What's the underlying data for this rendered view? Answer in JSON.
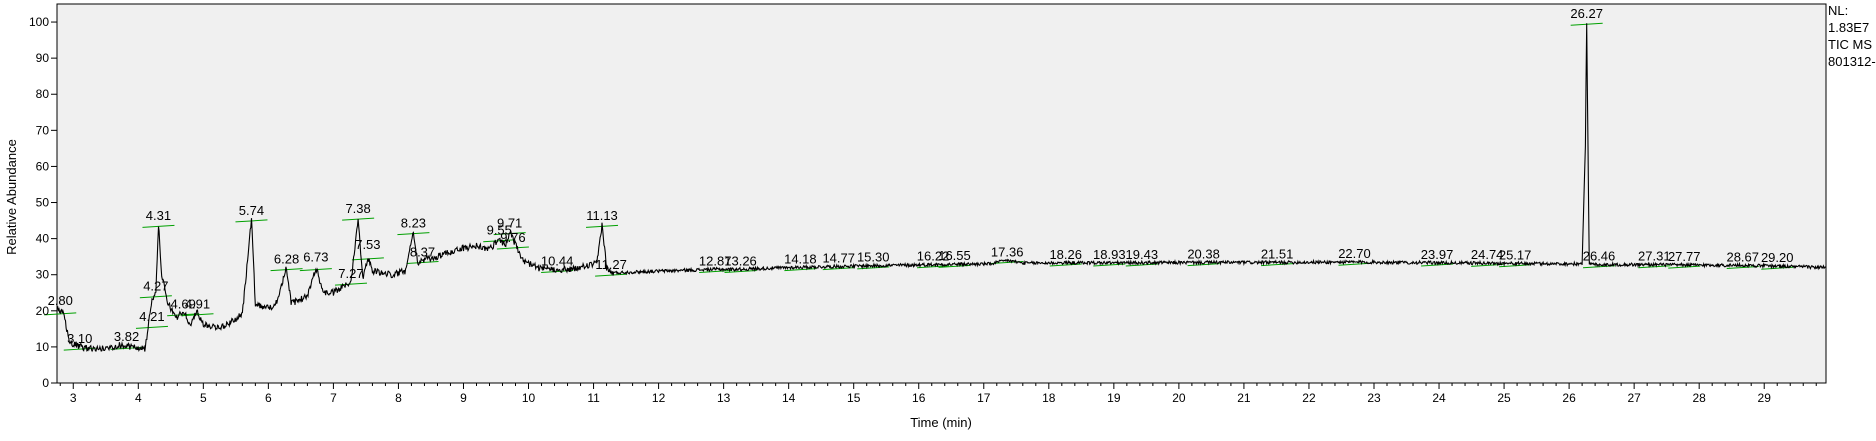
{
  "info": {
    "nl_label": "NL:",
    "nl_value": "1.83E7",
    "trace": "TIC  MS",
    "file": "801312-"
  },
  "chart_data": {
    "type": "line",
    "title": "",
    "xlabel": "Time (min)",
    "ylabel": "Relative Abundance",
    "xlim": [
      2.75,
      29.95
    ],
    "ylim": [
      0,
      105
    ],
    "grid": false,
    "legend": "none",
    "x_ticks": [
      3,
      4,
      5,
      6,
      7,
      8,
      9,
      10,
      11,
      12,
      13,
      14,
      15,
      16,
      17,
      18,
      19,
      20,
      21,
      22,
      23,
      24,
      25,
      26,
      27,
      28,
      29
    ],
    "y_ticks": [
      0,
      10,
      20,
      30,
      40,
      50,
      60,
      70,
      80,
      90,
      100
    ],
    "colors": {
      "trace": "#000000",
      "baseline": "#00a000",
      "plot_bg": "#f0f0f0"
    },
    "baseline_points": [
      [
        2.75,
        20.5
      ],
      [
        2.85,
        19.0
      ],
      [
        2.95,
        11.0
      ],
      [
        3.1,
        10.0
      ],
      [
        3.3,
        9.5
      ],
      [
        3.5,
        9.5
      ],
      [
        3.7,
        10.5
      ],
      [
        3.9,
        10.0
      ],
      [
        4.1,
        9.5
      ],
      [
        4.15,
        15.0
      ],
      [
        4.2,
        22.0
      ],
      [
        4.27,
        26.0
      ],
      [
        4.31,
        44.0
      ],
      [
        4.36,
        30.0
      ],
      [
        4.45,
        22.0
      ],
      [
        4.6,
        18.0
      ],
      [
        4.69,
        20.0
      ],
      [
        4.8,
        16.0
      ],
      [
        4.91,
        20.0
      ],
      [
        5.0,
        16.0
      ],
      [
        5.3,
        15.5
      ],
      [
        5.6,
        19.0
      ],
      [
        5.74,
        45.5
      ],
      [
        5.8,
        22.0
      ],
      [
        5.95,
        21.0
      ],
      [
        6.1,
        21.0
      ],
      [
        6.28,
        32.0
      ],
      [
        6.35,
        22.0
      ],
      [
        6.6,
        24.0
      ],
      [
        6.73,
        32.0
      ],
      [
        6.85,
        25.0
      ],
      [
        7.0,
        25.0
      ],
      [
        7.27,
        28.0
      ],
      [
        7.38,
        46.0
      ],
      [
        7.45,
        29.0
      ],
      [
        7.53,
        35.0
      ],
      [
        7.6,
        31.0
      ],
      [
        7.9,
        30.0
      ],
      [
        8.1,
        31.0
      ],
      [
        8.23,
        42.0
      ],
      [
        8.3,
        33.0
      ],
      [
        8.37,
        34.0
      ],
      [
        8.6,
        35.0
      ],
      [
        8.9,
        37.0
      ],
      [
        9.2,
        38.0
      ],
      [
        9.4,
        37.0
      ],
      [
        9.55,
        40.0
      ],
      [
        9.65,
        38.0
      ],
      [
        9.71,
        42.0
      ],
      [
        9.76,
        40.0
      ],
      [
        9.9,
        34.0
      ],
      [
        10.2,
        31.5
      ],
      [
        10.44,
        31.5
      ],
      [
        10.7,
        31.5
      ],
      [
        10.9,
        32.5
      ],
      [
        11.05,
        33.0
      ],
      [
        11.13,
        44.0
      ],
      [
        11.2,
        32.0
      ],
      [
        11.27,
        30.5
      ],
      [
        12.0,
        31.0
      ],
      [
        12.87,
        31.5
      ],
      [
        13.26,
        31.5
      ],
      [
        14.0,
        32.0
      ],
      [
        14.77,
        32.3
      ],
      [
        15.3,
        32.5
      ],
      [
        16.22,
        32.8
      ],
      [
        16.55,
        32.9
      ],
      [
        17.1,
        33.0
      ],
      [
        17.36,
        34.0
      ],
      [
        17.6,
        33.2
      ],
      [
        18.26,
        33.3
      ],
      [
        18.93,
        33.3
      ],
      [
        19.43,
        33.3
      ],
      [
        20.38,
        33.4
      ],
      [
        21.51,
        33.4
      ],
      [
        22.7,
        33.5
      ],
      [
        23.97,
        33.3
      ],
      [
        24.74,
        33.2
      ],
      [
        25.17,
        33.1
      ],
      [
        26.2,
        33.0
      ],
      [
        26.25,
        66.0
      ],
      [
        26.27,
        100.0
      ],
      [
        26.29,
        66.0
      ],
      [
        26.31,
        33.0
      ],
      [
        26.46,
        32.8
      ],
      [
        27.31,
        32.8
      ],
      [
        27.77,
        32.7
      ],
      [
        28.67,
        32.6
      ],
      [
        29.2,
        32.4
      ],
      [
        29.95,
        32.0
      ]
    ],
    "peaks": [
      {
        "rt": 2.8,
        "label": "2.80",
        "y": 20.5
      },
      {
        "rt": 3.1,
        "label": "3.10",
        "y": 10.0
      },
      {
        "rt": 3.82,
        "label": "3.82",
        "y": 10.5
      },
      {
        "rt": 4.21,
        "label": "4.21",
        "y": 16.0
      },
      {
        "rt": 4.27,
        "label": "4.27",
        "y": 24.5
      },
      {
        "rt": 4.31,
        "label": "4.31",
        "y": 44.0
      },
      {
        "rt": 4.69,
        "label": "4.69",
        "y": 19.5
      },
      {
        "rt": 4.91,
        "label": "4.91",
        "y": 19.5
      },
      {
        "rt": 5.74,
        "label": "5.74",
        "y": 45.5
      },
      {
        "rt": 6.28,
        "label": "6.28",
        "y": 32.0
      },
      {
        "rt": 6.73,
        "label": "6.73",
        "y": 32.5
      },
      {
        "rt": 7.27,
        "label": "7.27",
        "y": 28.0
      },
      {
        "rt": 7.38,
        "label": "7.38",
        "y": 46.0
      },
      {
        "rt": 7.53,
        "label": "7.53",
        "y": 36.0
      },
      {
        "rt": 8.23,
        "label": "8.23",
        "y": 42.0
      },
      {
        "rt": 8.37,
        "label": "8.37",
        "y": 34.0
      },
      {
        "rt": 9.55,
        "label": "9.55",
        "y": 40.0
      },
      {
        "rt": 9.71,
        "label": "9.71",
        "y": 42.0
      },
      {
        "rt": 9.76,
        "label": "9.76",
        "y": 38.0
      },
      {
        "rt": 10.44,
        "label": "10.44",
        "y": 31.5
      },
      {
        "rt": 11.13,
        "label": "11.13",
        "y": 44.0
      },
      {
        "rt": 11.27,
        "label": "11.27",
        "y": 30.5
      },
      {
        "rt": 12.87,
        "label": "12.87",
        "y": 31.5
      },
      {
        "rt": 13.26,
        "label": "13.26",
        "y": 31.5
      },
      {
        "rt": 14.18,
        "label": "14.18",
        "y": 32.0
      },
      {
        "rt": 14.77,
        "label": "14.77",
        "y": 32.3
      },
      {
        "rt": 15.3,
        "label": "15.30",
        "y": 32.5
      },
      {
        "rt": 16.22,
        "label": "16.22",
        "y": 32.8
      },
      {
        "rt": 16.55,
        "label": "16.55",
        "y": 32.9
      },
      {
        "rt": 17.36,
        "label": "17.36",
        "y": 34.0
      },
      {
        "rt": 18.26,
        "label": "18.26",
        "y": 33.3
      },
      {
        "rt": 18.93,
        "label": "18.93",
        "y": 33.3
      },
      {
        "rt": 19.43,
        "label": "19.43",
        "y": 33.3
      },
      {
        "rt": 20.38,
        "label": "20.38",
        "y": 33.4
      },
      {
        "rt": 21.51,
        "label": "21.51",
        "y": 33.4
      },
      {
        "rt": 22.7,
        "label": "22.70",
        "y": 33.5
      },
      {
        "rt": 23.97,
        "label": "23.97",
        "y": 33.3
      },
      {
        "rt": 24.74,
        "label": "24.74",
        "y": 33.2
      },
      {
        "rt": 25.17,
        "label": "25.17",
        "y": 33.1
      },
      {
        "rt": 26.27,
        "label": "26.27",
        "y": 100.0
      },
      {
        "rt": 26.46,
        "label": "26.46",
        "y": 32.8
      },
      {
        "rt": 27.31,
        "label": "27.31",
        "y": 32.8
      },
      {
        "rt": 27.77,
        "label": "27.77",
        "y": 32.7
      },
      {
        "rt": 28.67,
        "label": "28.67",
        "y": 32.6
      },
      {
        "rt": 29.2,
        "label": "29.20",
        "y": 32.4
      }
    ]
  }
}
